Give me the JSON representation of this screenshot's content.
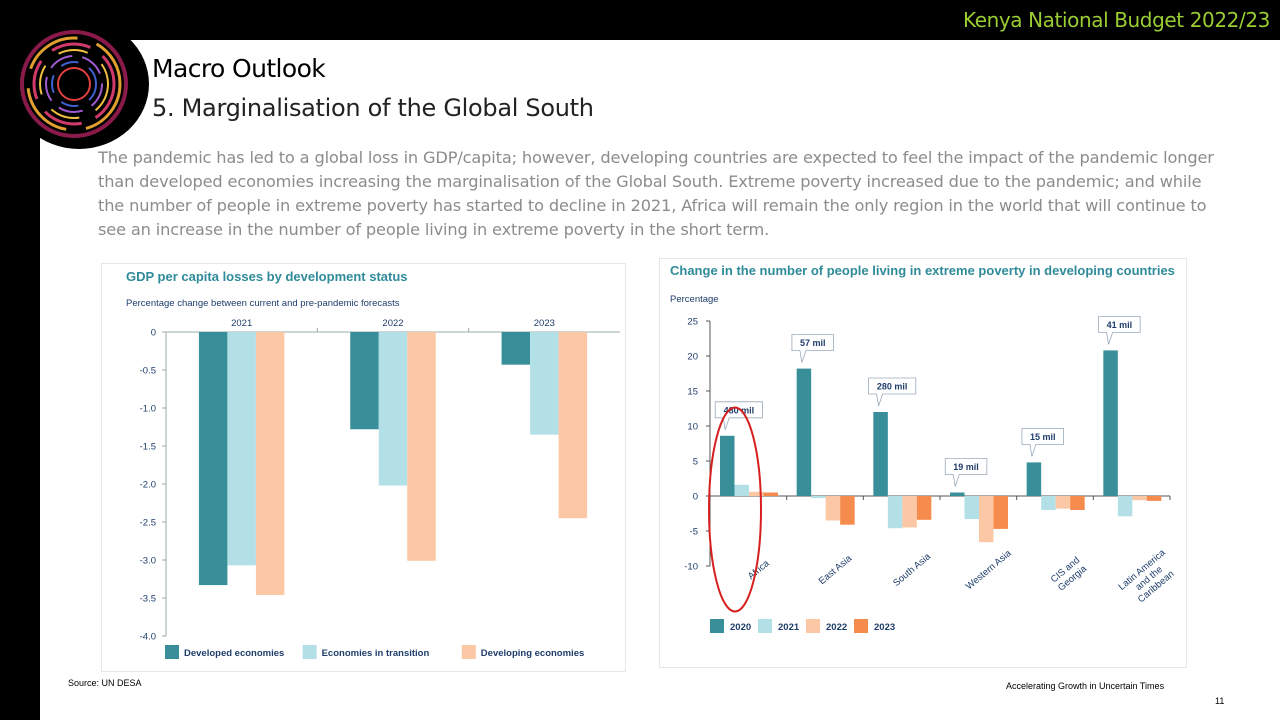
{
  "header": {
    "brand": "Kenya National Budget 2022/23"
  },
  "page": {
    "title": "Macro Outlook",
    "subtitle": "5. Marginalisation of the Global South",
    "paragraph": "The pandemic has led to a global loss in GDP/capita; however, developing countries are expected to feel the impact of the pandemic longer than developed economies increasing the marginalisation of the Global South. Extreme poverty increased due to the pandemic; and while the number of people in extreme poverty has started to decline in 2021, Africa will remain the only region in the world that will continue to see an increase in the number of people living in extreme poverty in the short term."
  },
  "footer": {
    "source": "Source: UN DESA",
    "tagline": "Accelerating Growth in Uncertain Times",
    "page_number": "11"
  },
  "colors": {
    "dark_teal": "#388f99",
    "light_blue": "#b2e0e6",
    "peach": "#fbc7a4",
    "orange": "#f58b4c",
    "title_teal": "#2f8b9a",
    "highlight_red": "#d62020"
  },
  "chart_data": [
    {
      "type": "bar",
      "title": "GDP per capita losses by development status",
      "subtitle": "Percentage change between current and pre-pandemic forecasts",
      "categories": [
        "2021",
        "2022",
        "2023"
      ],
      "series": [
        {
          "name": "Developed economies",
          "values": [
            -3.33,
            -1.28,
            -0.43
          ]
        },
        {
          "name": "Economies in transition",
          "values": [
            -3.07,
            -2.02,
            -1.35
          ]
        },
        {
          "name": "Developing economies",
          "values": [
            -3.46,
            -3.01,
            -2.45
          ]
        }
      ],
      "yticks": [
        "0",
        "-0.5",
        "-1.0",
        "-1.5",
        "-2.0",
        "-2.5",
        "-3.0",
        "-3.5",
        "-4.0"
      ],
      "ylim": [
        -4,
        0
      ],
      "legend": "bottom"
    },
    {
      "type": "bar",
      "title": "Change in the number of people living in extreme poverty in developing countries",
      "ylabel": "Percentage",
      "categories": [
        "Africa",
        "East Asia",
        "South Asia",
        "Western Asia",
        "CIS and Georgia",
        "Latin America and the Caribbean"
      ],
      "series": [
        {
          "name": "2020",
          "values": [
            8.6,
            18.2,
            12.0,
            0.5,
            4.8,
            20.8
          ]
        },
        {
          "name": "2021",
          "values": [
            1.6,
            -0.3,
            -4.6,
            -3.3,
            -2.0,
            -2.9
          ]
        },
        {
          "name": "2022",
          "values": [
            0.6,
            -3.5,
            -4.5,
            -6.6,
            -1.8,
            -0.6
          ]
        },
        {
          "name": "2023",
          "values": [
            0.5,
            -4.1,
            -3.4,
            -4.7,
            -2.0,
            -0.7
          ]
        }
      ],
      "annotations": [
        "480 mil",
        "57 mil",
        "280 mil",
        "19 mil",
        "15 mil",
        "41 mil"
      ],
      "yticks": [
        "25",
        "20",
        "15",
        "10",
        "5",
        "0",
        "-5",
        "-10"
      ],
      "ylim": [
        -10,
        25
      ],
      "legend": "bottom"
    }
  ]
}
